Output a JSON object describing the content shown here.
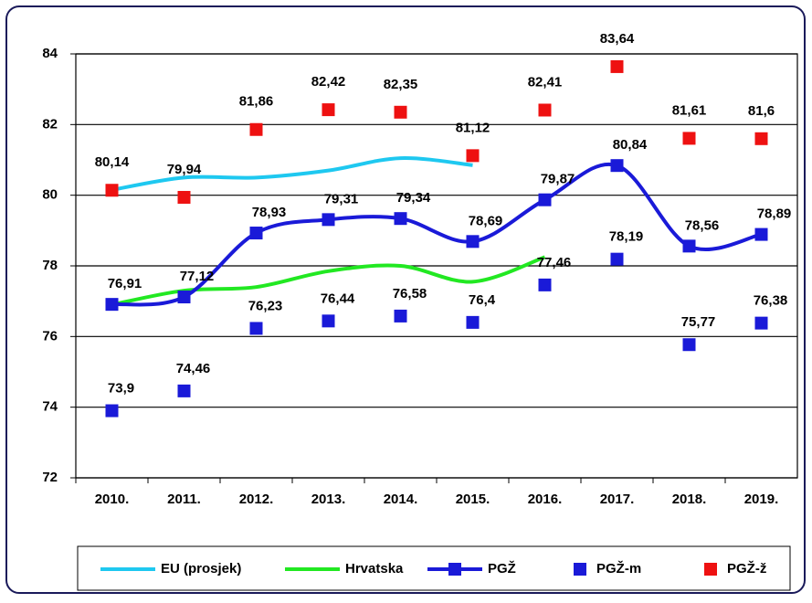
{
  "chart_data": {
    "type": "line",
    "categories": [
      "2010.",
      "2011.",
      "2012.",
      "2013.",
      "2014.",
      "2015.",
      "2016.",
      "2017.",
      "2018.",
      "2019."
    ],
    "ylim": [
      72,
      84
    ],
    "yticks": [
      72,
      74,
      76,
      78,
      80,
      82,
      84
    ],
    "grid": true,
    "legend": "bottom",
    "series": [
      {
        "name": "EU (prosjek)",
        "color": "#1ec8f0",
        "line": true,
        "marker": "none",
        "values": [
          80.15,
          80.5,
          80.5,
          80.7,
          81.05,
          80.85,
          null,
          null,
          null,
          null
        ]
      },
      {
        "name": "Hrvatska",
        "color": "#22e822",
        "line": true,
        "marker": "none",
        "values": [
          76.9,
          77.3,
          77.4,
          77.85,
          78.0,
          77.55,
          78.25,
          null,
          null,
          null
        ]
      },
      {
        "name": "PGŽ",
        "color": "#1a1ad8",
        "line": true,
        "marker": "square",
        "values": [
          76.91,
          77.12,
          78.93,
          79.31,
          79.34,
          78.69,
          79.87,
          80.84,
          78.56,
          78.89
        ],
        "value_labels": [
          "76,91",
          "77,12",
          "78,93",
          "79,31",
          "79,34",
          "78,69",
          "79,87",
          "80,84",
          "78,56",
          "78,89"
        ]
      },
      {
        "name": "PGŽ-m",
        "color": "#1a1ad8",
        "line": false,
        "marker": "square",
        "values": [
          73.9,
          74.46,
          76.23,
          76.44,
          76.58,
          76.4,
          77.46,
          78.19,
          75.77,
          76.38
        ],
        "value_labels": [
          "73,9",
          "74,46",
          "76,23",
          "76,44",
          "76,58",
          "76,4",
          "77,46",
          "78,19",
          "75,77",
          "76,38"
        ]
      },
      {
        "name": "PGŽ-ž",
        "color": "#ee1111",
        "line": false,
        "marker": "square",
        "values": [
          80.14,
          79.94,
          81.86,
          82.42,
          82.35,
          81.12,
          82.41,
          83.64,
          81.61,
          81.6
        ],
        "value_labels": [
          "80,14",
          "79,94",
          "81,86",
          "82,42",
          "82,35",
          "81,12",
          "82,41",
          "83,64",
          "81,61",
          "81,6"
        ]
      }
    ]
  }
}
